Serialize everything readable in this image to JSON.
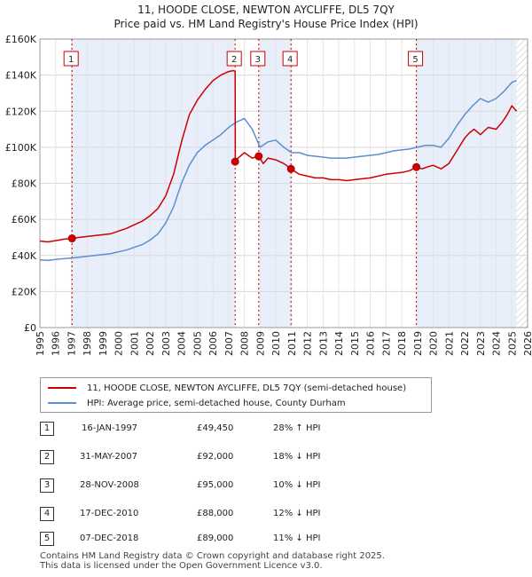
{
  "chart_data": {
    "type": "line",
    "title": "11, HOODE CLOSE, NEWTON AYCLIFFE, DL5 7QY",
    "subtitle": "Price paid vs. HM Land Registry's House Price Index (HPI)",
    "xlabel": "",
    "ylabel": "",
    "xlim": [
      1995,
      2026
    ],
    "ylim": [
      0,
      160000
    ],
    "x_ticks": [
      1995,
      1996,
      1997,
      1998,
      1999,
      2000,
      2001,
      2002,
      2003,
      2004,
      2005,
      2006,
      2007,
      2008,
      2009,
      2010,
      2011,
      2012,
      2013,
      2014,
      2015,
      2016,
      2017,
      2018,
      2019,
      2020,
      2021,
      2022,
      2023,
      2024,
      2025,
      2026
    ],
    "y_ticks": [
      {
        "value": 0,
        "label": "£0"
      },
      {
        "value": 20000,
        "label": "£20K"
      },
      {
        "value": 40000,
        "label": "£40K"
      },
      {
        "value": 60000,
        "label": "£60K"
      },
      {
        "value": 80000,
        "label": "£80K"
      },
      {
        "value": 100000,
        "label": "£100K"
      },
      {
        "value": 120000,
        "label": "£120K"
      },
      {
        "value": 140000,
        "label": "£140K"
      },
      {
        "value": 160000,
        "label": "£160K"
      }
    ],
    "series": [
      {
        "name": "11, HOODE CLOSE, NEWTON AYCLIFFE, DL5 7QY (semi-detached house)",
        "color": "#cc0000",
        "x": [
          1995.0,
          1995.5,
          1996.0,
          1996.5,
          1997.04,
          1997.5,
          1998.0,
          1998.5,
          1999.0,
          1999.5,
          2000.0,
          2000.5,
          2001.0,
          2001.5,
          2002.0,
          2002.5,
          2003.0,
          2003.5,
          2004.0,
          2004.5,
          2005.0,
          2005.5,
          2006.0,
          2006.5,
          2007.0,
          2007.3,
          2007.41,
          2007.42,
          2007.6,
          2008.0,
          2008.5,
          2008.91,
          2009.2,
          2009.5,
          2010.0,
          2010.5,
          2010.96,
          2011.3,
          2011.5,
          2012.0,
          2012.5,
          2013.0,
          2013.5,
          2014.0,
          2014.5,
          2015.0,
          2015.5,
          2016.0,
          2016.5,
          2017.0,
          2017.5,
          2018.0,
          2018.5,
          2018.93,
          2019.3,
          2019.6,
          2020.0,
          2020.5,
          2021.0,
          2021.5,
          2022.0,
          2022.3,
          2022.6,
          2023.0,
          2023.5,
          2024.0,
          2024.4,
          2024.7,
          2025.0,
          2025.3
        ],
        "values": [
          48000,
          47500,
          48200,
          49000,
          49450,
          50000,
          50500,
          51000,
          51500,
          52000,
          53500,
          55000,
          57000,
          59000,
          62000,
          66000,
          73000,
          85000,
          103000,
          118000,
          126000,
          132000,
          137000,
          140000,
          142000,
          142500,
          142000,
          92000,
          94000,
          97000,
          94000,
          95000,
          91000,
          94000,
          93000,
          91000,
          88000,
          86000,
          85000,
          84000,
          83000,
          83000,
          82000,
          82000,
          81500,
          82000,
          82500,
          83000,
          84000,
          85000,
          85500,
          86000,
          87000,
          89000,
          88000,
          89000,
          90000,
          88000,
          91000,
          98000,
          105000,
          108000,
          110000,
          107000,
          111000,
          110000,
          114000,
          118000,
          123000,
          120000
        ]
      },
      {
        "name": "HPI: Average price, semi-detached house, County Durham",
        "color": "#5b8fd0",
        "x": [
          1995.0,
          1995.5,
          1996.0,
          1996.5,
          1997.0,
          1997.5,
          1998.0,
          1998.5,
          1999.0,
          1999.5,
          2000.0,
          2000.5,
          2001.0,
          2001.5,
          2002.0,
          2002.5,
          2003.0,
          2003.5,
          2004.0,
          2004.5,
          2005.0,
          2005.5,
          2006.0,
          2006.5,
          2007.0,
          2007.5,
          2008.0,
          2008.5,
          2009.0,
          2009.5,
          2010.0,
          2010.5,
          2011.0,
          2011.5,
          2012.0,
          2012.5,
          2013.0,
          2013.5,
          2014.0,
          2014.5,
          2015.0,
          2015.5,
          2016.0,
          2016.5,
          2017.0,
          2017.5,
          2018.0,
          2018.5,
          2019.0,
          2019.5,
          2020.0,
          2020.5,
          2021.0,
          2021.5,
          2022.0,
          2022.5,
          2023.0,
          2023.5,
          2024.0,
          2024.5,
          2025.0,
          2025.3
        ],
        "values": [
          37500,
          37200,
          37800,
          38200,
          38500,
          39000,
          39500,
          40000,
          40500,
          41000,
          42000,
          43000,
          44500,
          46000,
          48500,
          52000,
          58000,
          67000,
          80000,
          90000,
          97000,
          101000,
          104000,
          107000,
          111000,
          114000,
          116000,
          110000,
          100000,
          103000,
          104000,
          100000,
          97000,
          97000,
          95500,
          95000,
          94500,
          94000,
          94000,
          94000,
          94500,
          95000,
          95500,
          96000,
          97000,
          98000,
          98500,
          99000,
          100000,
          101000,
          101000,
          100000,
          105000,
          112000,
          118000,
          123000,
          127000,
          125000,
          127000,
          131000,
          136000,
          137000
        ]
      }
    ],
    "sales": [
      {
        "n": "1",
        "x": 1997.04,
        "price": 49450
      },
      {
        "n": "2",
        "x": 2007.41,
        "price": 92000
      },
      {
        "n": "3",
        "x": 2008.91,
        "price": 95000
      },
      {
        "n": "4",
        "x": 2010.96,
        "price": 88000
      },
      {
        "n": "5",
        "x": 2018.93,
        "price": 89000
      }
    ]
  },
  "legend": {
    "property": "11, HOODE CLOSE, NEWTON AYCLIFFE, DL5 7QY (semi-detached house)",
    "hpi": "HPI: Average price, semi-detached house, County Durham"
  },
  "colors": {
    "property": "#cc0000",
    "hpi": "#5b8fd0",
    "band": "#e8eefa"
  },
  "table": [
    {
      "n": "1",
      "date": "16-JAN-1997",
      "price": "£49,450",
      "hpi": "28% ↑ HPI"
    },
    {
      "n": "2",
      "date": "31-MAY-2007",
      "price": "£92,000",
      "hpi": "18% ↓ HPI"
    },
    {
      "n": "3",
      "date": "28-NOV-2008",
      "price": "£95,000",
      "hpi": "10% ↓ HPI"
    },
    {
      "n": "4",
      "date": "17-DEC-2010",
      "price": "£88,000",
      "hpi": "12% ↓ HPI"
    },
    {
      "n": "5",
      "date": "07-DEC-2018",
      "price": "£89,000",
      "hpi": "11% ↓ HPI"
    }
  ],
  "footer": {
    "line1": "Contains HM Land Registry data © Crown copyright and database right 2025.",
    "line2": "This data is licensed under the Open Government Licence v3.0."
  }
}
